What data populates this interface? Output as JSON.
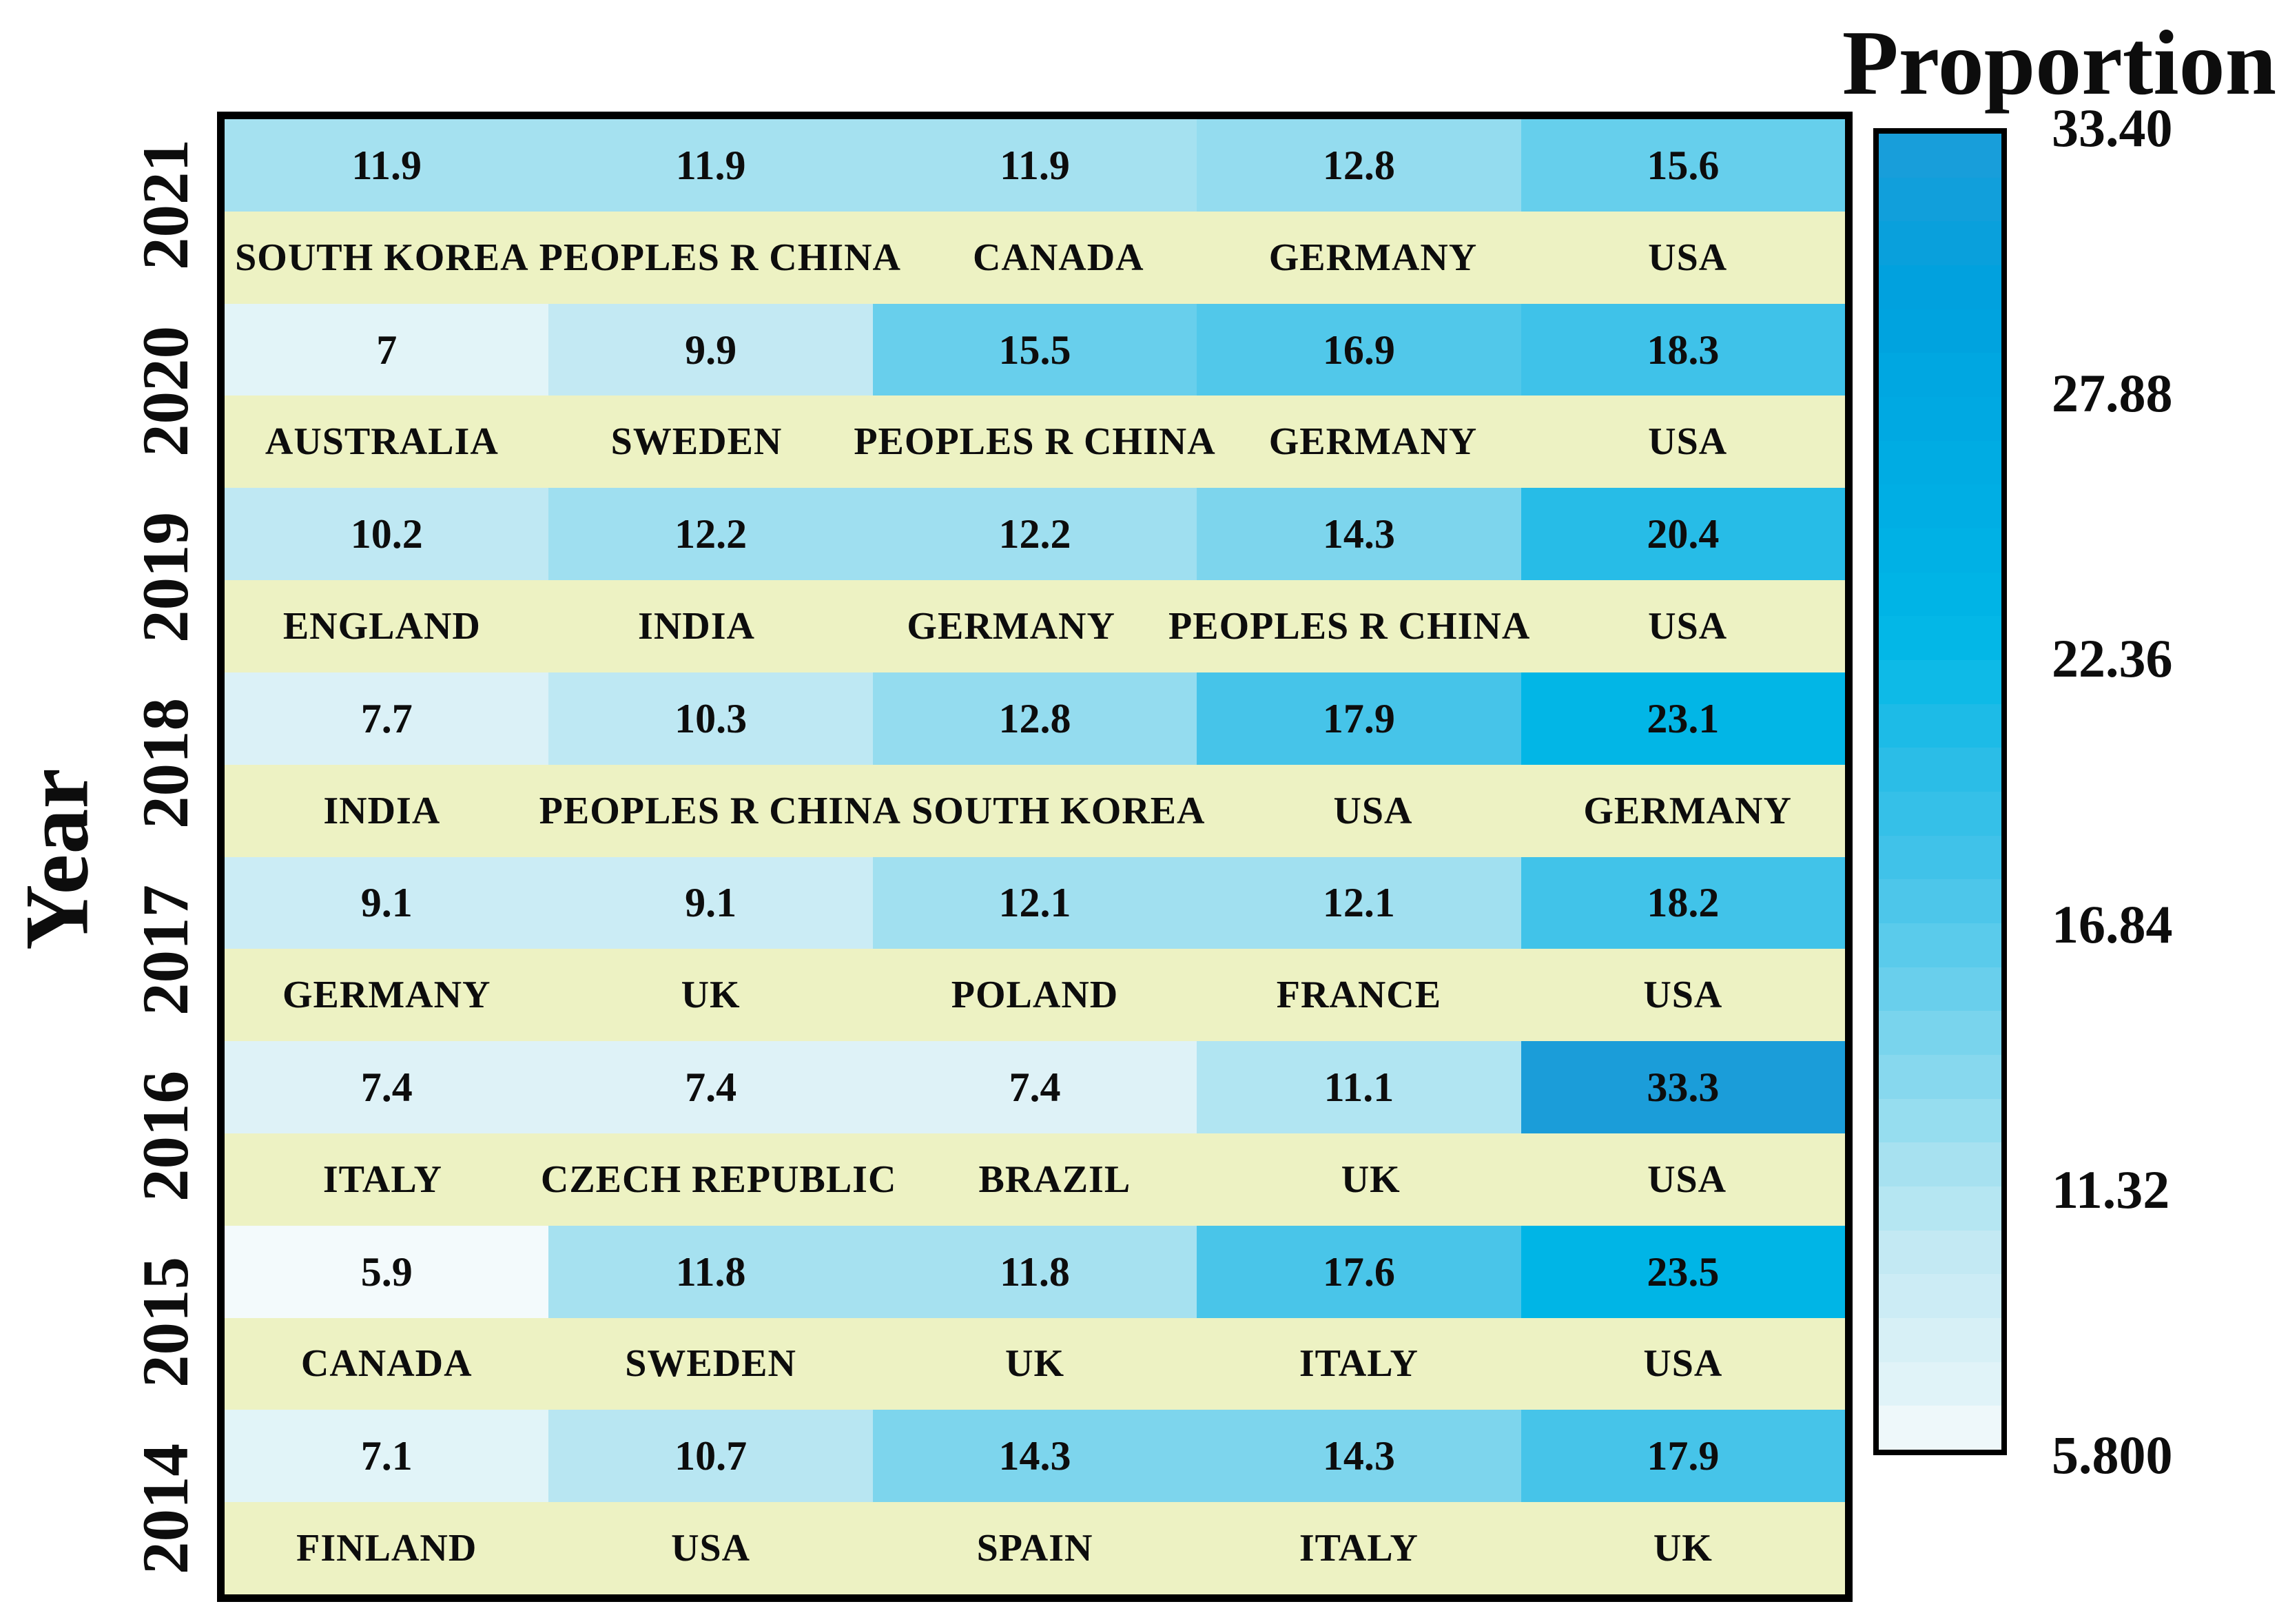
{
  "title": {
    "text": "Proportion"
  },
  "y_axis": {
    "label": "Year"
  },
  "colorbar": {
    "title": "Proportion",
    "tick_labels": [
      "33.40",
      "27.88",
      "22.36",
      "16.84",
      "11.32",
      "5.800"
    ]
  },
  "colors": {
    "background": "#ffffff",
    "text": "#0d0d0d",
    "table_border": "#000000",
    "country_row_bg": "#edf2c3",
    "colormap": [
      {
        "value": 5.8,
        "color": "#f5fbfc"
      },
      {
        "value": 7.0,
        "color": "#e2f4f8"
      },
      {
        "value": 8.0,
        "color": "#d8f0f6"
      },
      {
        "value": 9.1,
        "color": "#cbecf5"
      },
      {
        "value": 10.0,
        "color": "#c2e9f3"
      },
      {
        "value": 11.0,
        "color": "#b3e5f2"
      },
      {
        "value": 12.0,
        "color": "#a3e0f0"
      },
      {
        "value": 13.0,
        "color": "#90dbef"
      },
      {
        "value": 14.3,
        "color": "#7dd5ed"
      },
      {
        "value": 15.5,
        "color": "#68cfec"
      },
      {
        "value": 16.9,
        "color": "#51c8ea"
      },
      {
        "value": 17.9,
        "color": "#46c4e9"
      },
      {
        "value": 18.3,
        "color": "#3fc2e9"
      },
      {
        "value": 20.4,
        "color": "#27bce7"
      },
      {
        "value": 22.4,
        "color": "#05b9e7"
      },
      {
        "value": 23.5,
        "color": "#00b5e6"
      },
      {
        "value": 25.0,
        "color": "#00b0e5"
      },
      {
        "value": 27.9,
        "color": "#00a8e2"
      },
      {
        "value": 30.0,
        "color": "#00a1de"
      },
      {
        "value": 33.4,
        "color": "#1c9dd9"
      }
    ]
  },
  "chart_data": {
    "type": "heatmap",
    "title": "",
    "ylabel": "Year",
    "colorbar_title": "Proportion",
    "vmin": 5.8,
    "vmax": 33.4,
    "colorbar_tick_values": [
      33.4,
      27.88,
      22.36,
      16.84,
      11.32,
      5.8
    ],
    "legend_position": "right",
    "grid": false,
    "rows": [
      {
        "year": "2021",
        "cells": [
          {
            "country": "SOUTH KOREA",
            "value": 11.9
          },
          {
            "country": "PEOPLES R CHINA",
            "value": 11.9
          },
          {
            "country": "CANADA",
            "value": 11.9
          },
          {
            "country": "GERMANY",
            "value": 12.8
          },
          {
            "country": "USA",
            "value": 15.6
          }
        ]
      },
      {
        "year": "2020",
        "cells": [
          {
            "country": "AUSTRALIA",
            "value": 7
          },
          {
            "country": "SWEDEN",
            "value": 9.9
          },
          {
            "country": "PEOPLES R CHINA",
            "value": 15.5
          },
          {
            "country": "GERMANY",
            "value": 16.9
          },
          {
            "country": "USA",
            "value": 18.3
          }
        ]
      },
      {
        "year": "2019",
        "cells": [
          {
            "country": "ENGLAND",
            "value": 10.2
          },
          {
            "country": "INDIA",
            "value": 12.2
          },
          {
            "country": "GERMANY",
            "value": 12.2
          },
          {
            "country": "PEOPLES R CHINA",
            "value": 14.3
          },
          {
            "country": "USA",
            "value": 20.4
          }
        ]
      },
      {
        "year": "2018",
        "cells": [
          {
            "country": "INDIA",
            "value": 7.7
          },
          {
            "country": "PEOPLES R CHINA",
            "value": 10.3
          },
          {
            "country": "SOUTH KOREA",
            "value": 12.8
          },
          {
            "country": "USA",
            "value": 17.9
          },
          {
            "country": "GERMANY",
            "value": 23.1
          }
        ]
      },
      {
        "year": "2017",
        "cells": [
          {
            "country": "GERMANY",
            "value": 9.1
          },
          {
            "country": "UK",
            "value": 9.1
          },
          {
            "country": "POLAND",
            "value": 12.1
          },
          {
            "country": "FRANCE",
            "value": 12.1
          },
          {
            "country": "USA",
            "value": 18.2
          }
        ]
      },
      {
        "year": "2016",
        "cells": [
          {
            "country": "ITALY",
            "value": 7.4
          },
          {
            "country": "CZECH REPUBLIC",
            "value": 7.4
          },
          {
            "country": "BRAZIL",
            "value": 7.4
          },
          {
            "country": "UK",
            "value": 11.1
          },
          {
            "country": "USA",
            "value": 33.3
          }
        ]
      },
      {
        "year": "2015",
        "cells": [
          {
            "country": "CANADA",
            "value": 5.9
          },
          {
            "country": "SWEDEN",
            "value": 11.8
          },
          {
            "country": "UK",
            "value": 11.8
          },
          {
            "country": "ITALY",
            "value": 17.6
          },
          {
            "country": "USA",
            "value": 23.5
          }
        ]
      },
      {
        "year": "2014",
        "cells": [
          {
            "country": "FINLAND",
            "value": 7.1
          },
          {
            "country": "USA",
            "value": 10.7
          },
          {
            "country": "SPAIN",
            "value": 14.3
          },
          {
            "country": "ITALY",
            "value": 14.3
          },
          {
            "country": "UK",
            "value": 17.9
          }
        ]
      }
    ]
  }
}
